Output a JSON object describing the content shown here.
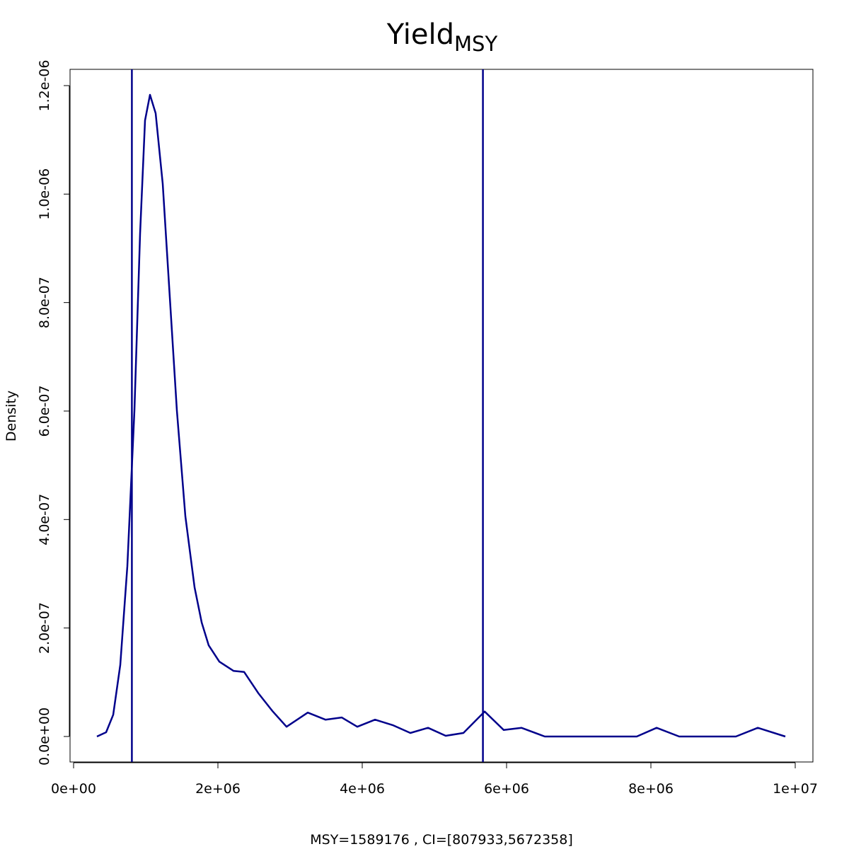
{
  "chart_data": {
    "type": "line",
    "title": "Yield",
    "title_subscript": "MSY",
    "x_label": "MSY=1589176 , CI=[807933,5672358]",
    "y_label": "Density",
    "xlim": [
      -49000,
      10245000
    ],
    "ylim": [
      -4.7e-08,
      1.23e-06
    ],
    "xticks": [
      {
        "value": 0,
        "label": "0e+00"
      },
      {
        "value": 2000000,
        "label": "2e+06"
      },
      {
        "value": 4000000,
        "label": "4e+06"
      },
      {
        "value": 6000000,
        "label": "6e+06"
      },
      {
        "value": 8000000,
        "label": "8e+06"
      },
      {
        "value": 10000000,
        "label": "1e+07"
      }
    ],
    "yticks": [
      {
        "value": 0,
        "label": "0.0e+00"
      },
      {
        "value": 2e-07,
        "label": "2.0e-07"
      },
      {
        "value": 4e-07,
        "label": "4.0e-07"
      },
      {
        "value": 6e-07,
        "label": "6.0e-07"
      },
      {
        "value": 8e-07,
        "label": "8.0e-07"
      },
      {
        "value": 1e-06,
        "label": "1.0e-06"
      },
      {
        "value": 1.2e-06,
        "label": "1.2e-06"
      }
    ],
    "vlines": [
      807933,
      5672358
    ],
    "color": "#00008b",
    "series": [
      {
        "color": "#00008b",
        "x": [
          323500,
          451000,
          549000,
          647000,
          745000,
          843000,
          922000,
          990000,
          1059000,
          1137000,
          1235000,
          1333000,
          1431000,
          1549000,
          1676000,
          1775000,
          1873000,
          2020000,
          2216000,
          2363000,
          2559000,
          2755000,
          2951000,
          3245000,
          3490000,
          3716000,
          3931000,
          4177000,
          4422000,
          4667000,
          4912000,
          5157000,
          5402000,
          5696000,
          5961000,
          6206000,
          6529000,
          7804000,
          8079000,
          8392000,
          9177000,
          9481000,
          9863000
        ],
        "values": [
          0,
          7.8e-09,
          4e-08,
          1.32e-07,
          3.14e-07,
          6.01e-07,
          9.27e-07,
          1.136e-06,
          1.183e-06,
          1.149e-06,
          1.019e-06,
          8.1e-07,
          6.01e-07,
          4.06e-07,
          2.75e-07,
          2.1e-07,
          1.68e-07,
          1.38e-07,
          1.21e-07,
          1.19e-07,
          8e-08,
          4.7e-08,
          1.8e-08,
          4.4e-08,
          3.1e-08,
          3.5e-08,
          1.8e-08,
          3.1e-08,
          2.1e-08,
          6.5e-09,
          1.6e-08,
          1.3e-09,
          6.5e-09,
          4.6e-08,
          1.2e-08,
          1.6e-08,
          0,
          0,
          1.6e-08,
          0,
          0,
          1.6e-08,
          0
        ]
      }
    ]
  }
}
